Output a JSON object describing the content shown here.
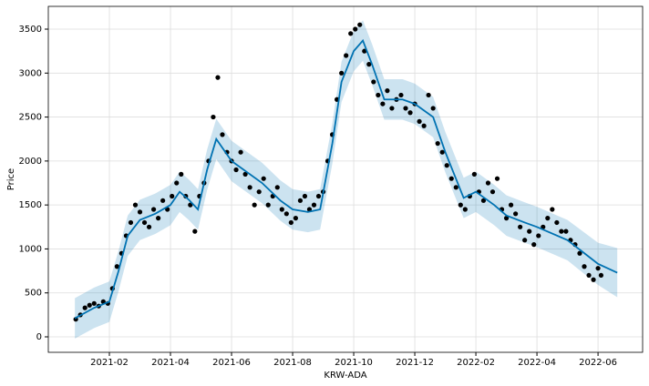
{
  "chart_data": {
    "type": "forecast",
    "xlabel": "KRW-ADA",
    "ylabel": "Price",
    "grid": true,
    "xlim": [
      -1.0,
      18.46
    ],
    "ylim": [
      -176,
      3759
    ],
    "xticks": [
      {
        "value": 1,
        "label": "2021-02"
      },
      {
        "value": 3,
        "label": "2021-04"
      },
      {
        "value": 5,
        "label": "2021-06"
      },
      {
        "value": 7,
        "label": "2021-08"
      },
      {
        "value": 9,
        "label": "2021-10"
      },
      {
        "value": 11,
        "label": "2021-12"
      },
      {
        "value": 13,
        "label": "2022-02"
      },
      {
        "value": 15,
        "label": "2022-04"
      },
      {
        "value": 17,
        "label": "2022-06"
      }
    ],
    "yticks": [
      0,
      500,
      1000,
      1500,
      2000,
      2500,
      3000,
      3500
    ],
    "observed": {
      "color": "#000000",
      "x": [
        -0.1,
        0.05,
        0.2,
        0.35,
        0.5,
        0.65,
        0.8,
        0.95,
        1.1,
        1.25,
        1.4,
        1.55,
        1.7,
        1.85,
        2.0,
        2.15,
        2.3,
        2.45,
        2.6,
        2.75,
        2.9,
        3.05,
        3.2,
        3.35,
        3.5,
        3.65,
        3.8,
        3.95,
        4.1,
        4.25,
        4.4,
        4.55,
        4.7,
        4.85,
        5.0,
        5.15,
        5.3,
        5.45,
        5.6,
        5.75,
        5.9,
        6.05,
        6.2,
        6.35,
        6.5,
        6.65,
        6.8,
        6.95,
        7.1,
        7.25,
        7.4,
        7.55,
        7.7,
        7.85,
        8.0,
        8.15,
        8.3,
        8.45,
        8.6,
        8.75,
        8.9,
        9.05,
        9.2,
        9.35,
        9.5,
        9.65,
        9.8,
        9.95,
        10.1,
        10.25,
        10.4,
        10.55,
        10.7,
        10.85,
        11.0,
        11.15,
        11.3,
        11.45,
        11.6,
        11.75,
        11.9,
        12.05,
        12.2,
        12.35,
        12.5,
        12.65,
        12.8,
        12.95,
        13.1,
        13.25,
        13.4,
        13.55,
        13.7,
        13.85,
        14.0,
        14.15,
        14.3,
        14.45,
        14.6,
        14.75,
        14.9,
        15.05,
        15.2,
        15.35,
        15.5,
        15.65,
        15.8,
        15.95,
        16.1,
        16.25,
        16.4,
        16.55,
        16.7,
        16.85,
        17.0,
        17.1
      ],
      "values": [
        200,
        250,
        330,
        360,
        380,
        350,
        400,
        380,
        550,
        800,
        950,
        1150,
        1300,
        1500,
        1420,
        1300,
        1250,
        1450,
        1350,
        1550,
        1450,
        1600,
        1750,
        1850,
        1600,
        1500,
        1200,
        1600,
        1750,
        2000,
        2500,
        2950,
        2300,
        2100,
        2000,
        1900,
        2100,
        1850,
        1700,
        1500,
        1650,
        1800,
        1500,
        1600,
        1700,
        1450,
        1400,
        1300,
        1350,
        1550,
        1600,
        1450,
        1500,
        1600,
        1650,
        2000,
        2300,
        2700,
        3000,
        3200,
        3450,
        3500,
        3550,
        3250,
        3100,
        2900,
        2750,
        2650,
        2800,
        2600,
        2700,
        2750,
        2600,
        2550,
        2650,
        2450,
        2400,
        2750,
        2600,
        2200,
        2100,
        1950,
        1800,
        1700,
        1500,
        1450,
        1600,
        1850,
        1650,
        1550,
        1750,
        1650,
        1800,
        1450,
        1350,
        1500,
        1400,
        1250,
        1100,
        1200,
        1050,
        1150,
        1250,
        1350,
        1450,
        1300,
        1200,
        1200,
        1100,
        1050,
        950,
        800,
        700,
        650,
        780,
        700
      ]
    },
    "forecast": {
      "color": "#0072b2",
      "band_color": "#0072b2",
      "x": [
        -0.13,
        0.5,
        1.0,
        1.3,
        1.6,
        2.0,
        2.5,
        3.0,
        3.3,
        3.6,
        3.9,
        4.2,
        4.5,
        5.0,
        6.0,
        6.6,
        7.0,
        7.5,
        7.9,
        8.3,
        8.6,
        9.0,
        9.3,
        9.6,
        10.0,
        10.6,
        11.0,
        11.6,
        12.0,
        12.6,
        13.0,
        13.6,
        14.0,
        14.6,
        15.0,
        16.0,
        17.0,
        17.63
      ],
      "values": [
        210,
        330,
        400,
        750,
        1150,
        1330,
        1400,
        1500,
        1650,
        1560,
        1450,
        1900,
        2250,
        2000,
        1750,
        1550,
        1450,
        1420,
        1450,
        2200,
        2900,
        3250,
        3370,
        3100,
        2700,
        2700,
        2650,
        2500,
        2100,
        1580,
        1650,
        1500,
        1380,
        1300,
        1250,
        1100,
        830,
        730
      ],
      "lower": [
        -20,
        100,
        170,
        520,
        920,
        1100,
        1170,
        1270,
        1420,
        1330,
        1220,
        1670,
        2020,
        1770,
        1520,
        1320,
        1220,
        1190,
        1220,
        1970,
        2670,
        3020,
        3140,
        2870,
        2470,
        2470,
        2420,
        2270,
        1870,
        1350,
        1420,
        1270,
        1150,
        1070,
        1020,
        870,
        590,
        450
      ],
      "upper": [
        440,
        560,
        630,
        980,
        1380,
        1560,
        1630,
        1730,
        1880,
        1790,
        1680,
        2130,
        2480,
        2230,
        1980,
        1780,
        1680,
        1650,
        1680,
        2430,
        3130,
        3480,
        3600,
        3330,
        2930,
        2930,
        2880,
        2730,
        2330,
        1810,
        1880,
        1730,
        1610,
        1530,
        1480,
        1330,
        1070,
        1010
      ]
    }
  }
}
